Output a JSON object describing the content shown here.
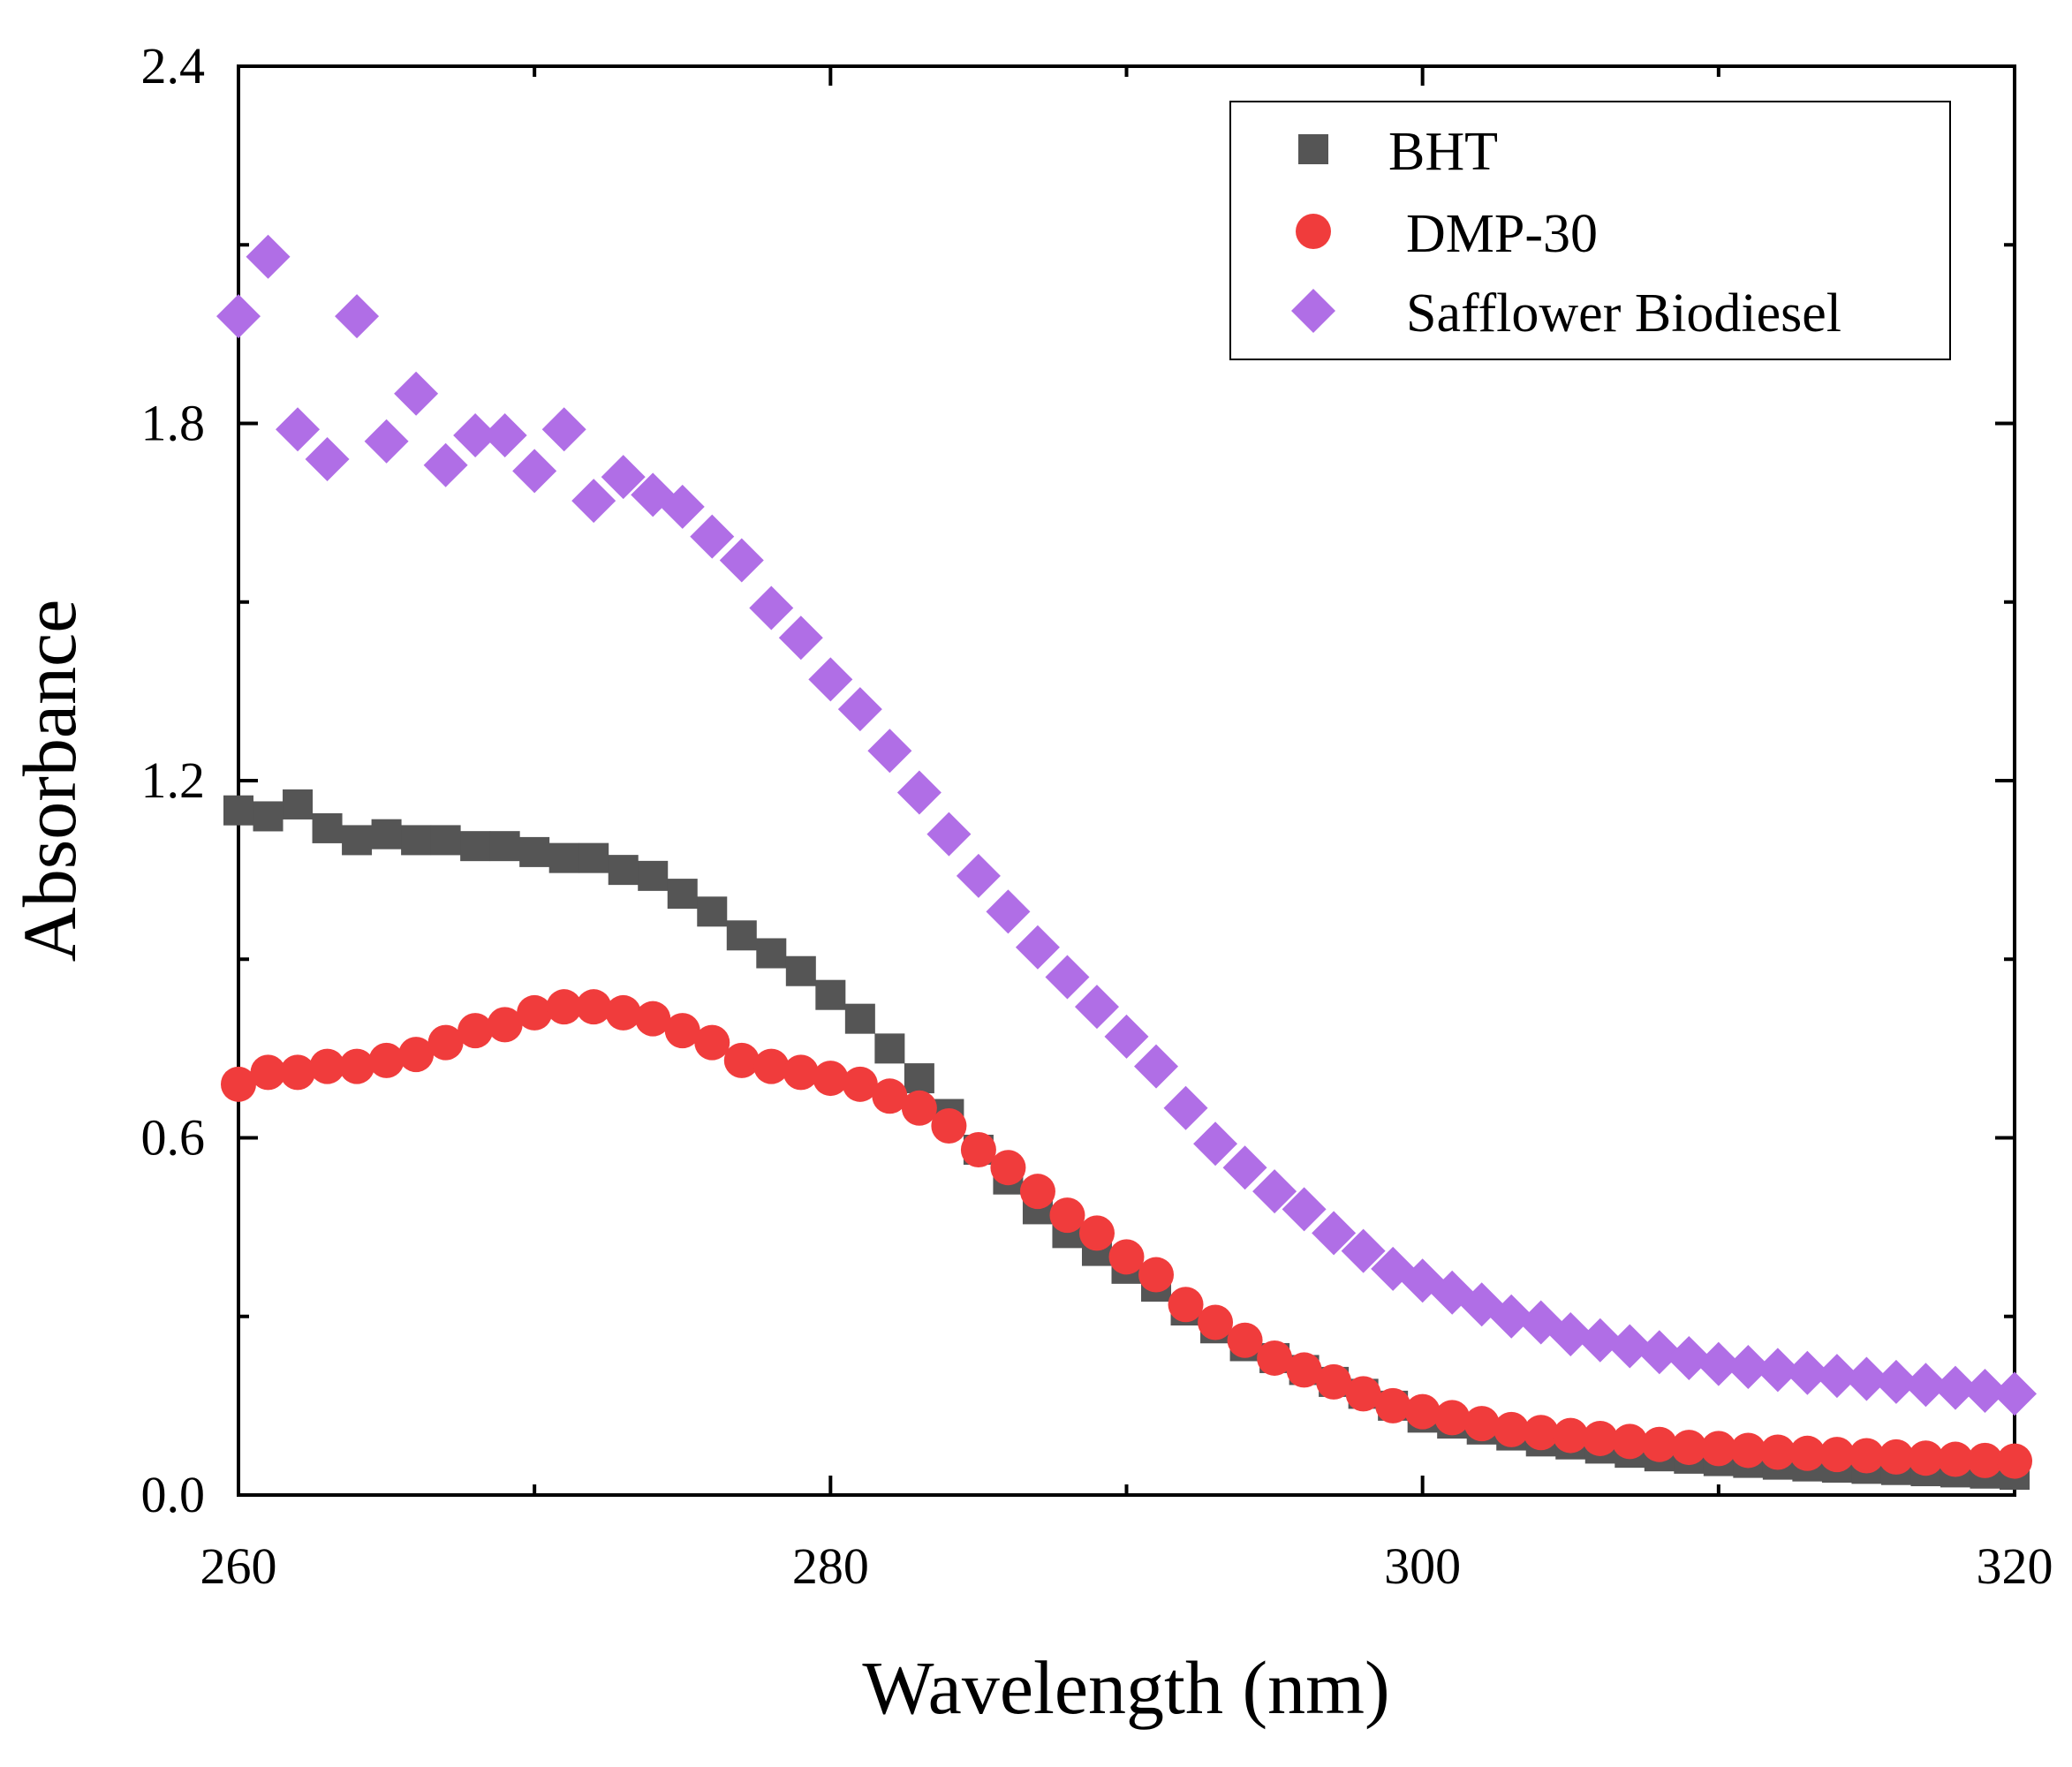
{
  "chart_data": {
    "type": "scatter",
    "xlabel": "Wavelength (nm)",
    "ylabel": "Absorbance",
    "xlim": [
      260,
      320
    ],
    "ylim": [
      0.0,
      2.4
    ],
    "x_ticks": [
      {
        "value": 260,
        "label": "260"
      },
      {
        "value": 280,
        "label": "280"
      },
      {
        "value": 300,
        "label": "300"
      },
      {
        "value": 320,
        "label": "320"
      }
    ],
    "y_ticks": [
      {
        "value": 0.0,
        "label": "0.0"
      },
      {
        "value": 0.6,
        "label": "0.6"
      },
      {
        "value": 1.2,
        "label": "1.2"
      },
      {
        "value": 1.8,
        "label": "1.8"
      },
      {
        "value": 2.4,
        "label": "2.4"
      }
    ],
    "x_minor_ticks": [
      270,
      290,
      310
    ],
    "y_minor_ticks": [
      0.3,
      0.9,
      1.5,
      2.1
    ],
    "grid": false,
    "legend_position": "top-right",
    "series": [
      {
        "name": "BHT",
        "marker": "square",
        "color": "#555555",
        "x": [
          260,
          261,
          262,
          263,
          264,
          265,
          266,
          267,
          268,
          269,
          270,
          271,
          272,
          273,
          274,
          275,
          276,
          277,
          278,
          279,
          280,
          281,
          282,
          283,
          284,
          285,
          286,
          287,
          288,
          289,
          290,
          291,
          292,
          293,
          294,
          295,
          296,
          297,
          298,
          299,
          300,
          301,
          302,
          303,
          304,
          305,
          306,
          307,
          308,
          309,
          310,
          311,
          312,
          313,
          314,
          315,
          316,
          317,
          318,
          319,
          320
        ],
        "values": [
          1.15,
          1.14,
          1.16,
          1.12,
          1.1,
          1.11,
          1.1,
          1.1,
          1.09,
          1.09,
          1.08,
          1.07,
          1.07,
          1.05,
          1.04,
          1.01,
          0.98,
          0.94,
          0.91,
          0.88,
          0.84,
          0.8,
          0.75,
          0.7,
          0.64,
          0.58,
          0.53,
          0.48,
          0.44,
          0.41,
          0.38,
          0.35,
          0.31,
          0.28,
          0.25,
          0.23,
          0.21,
          0.19,
          0.17,
          0.15,
          0.13,
          0.12,
          0.11,
          0.1,
          0.09,
          0.085,
          0.078,
          0.071,
          0.065,
          0.061,
          0.057,
          0.054,
          0.051,
          0.048,
          0.046,
          0.044,
          0.042,
          0.04,
          0.038,
          0.036,
          0.034
        ]
      },
      {
        "name": "DMP-30",
        "marker": "circle",
        "color": "#f03c3c",
        "x": [
          260,
          261,
          262,
          263,
          264,
          265,
          266,
          267,
          268,
          269,
          270,
          271,
          272,
          273,
          274,
          275,
          276,
          277,
          278,
          279,
          280,
          281,
          282,
          283,
          284,
          285,
          286,
          287,
          288,
          289,
          290,
          291,
          292,
          293,
          294,
          295,
          296,
          297,
          298,
          299,
          300,
          301,
          302,
          303,
          304,
          305,
          306,
          307,
          308,
          309,
          310,
          311,
          312,
          313,
          314,
          315,
          316,
          317,
          318,
          319,
          320
        ],
        "values": [
          0.69,
          0.71,
          0.71,
          0.72,
          0.72,
          0.73,
          0.74,
          0.76,
          0.78,
          0.79,
          0.81,
          0.82,
          0.82,
          0.81,
          0.8,
          0.78,
          0.76,
          0.73,
          0.72,
          0.71,
          0.7,
          0.69,
          0.67,
          0.65,
          0.62,
          0.58,
          0.55,
          0.51,
          0.47,
          0.44,
          0.4,
          0.37,
          0.32,
          0.29,
          0.26,
          0.23,
          0.21,
          0.19,
          0.17,
          0.15,
          0.14,
          0.13,
          0.12,
          0.11,
          0.105,
          0.1,
          0.095,
          0.09,
          0.085,
          0.08,
          0.078,
          0.075,
          0.072,
          0.07,
          0.068,
          0.066,
          0.064,
          0.062,
          0.06,
          0.058,
          0.057
        ]
      },
      {
        "name": "Safflower Biodiesel",
        "marker": "diamond",
        "color": "#b06ee6",
        "x": [
          260,
          261,
          262,
          263,
          264,
          265,
          266,
          267,
          268,
          269,
          270,
          271,
          272,
          273,
          274,
          275,
          276,
          277,
          278,
          279,
          280,
          281,
          282,
          283,
          284,
          285,
          286,
          287,
          288,
          289,
          290,
          291,
          292,
          293,
          294,
          295,
          296,
          297,
          298,
          299,
          300,
          301,
          302,
          303,
          304,
          305,
          306,
          307,
          308,
          309,
          310,
          311,
          312,
          313,
          314,
          315,
          316,
          317,
          318,
          319,
          320
        ],
        "values": [
          1.98,
          2.08,
          1.79,
          1.74,
          1.98,
          1.77,
          1.85,
          1.73,
          1.78,
          1.78,
          1.72,
          1.79,
          1.67,
          1.71,
          1.68,
          1.66,
          1.61,
          1.57,
          1.49,
          1.44,
          1.37,
          1.32,
          1.25,
          1.18,
          1.11,
          1.04,
          0.98,
          0.92,
          0.87,
          0.82,
          0.77,
          0.72,
          0.65,
          0.59,
          0.55,
          0.51,
          0.48,
          0.44,
          0.41,
          0.38,
          0.36,
          0.34,
          0.32,
          0.3,
          0.29,
          0.27,
          0.26,
          0.25,
          0.24,
          0.23,
          0.22,
          0.215,
          0.21,
          0.205,
          0.2,
          0.195,
          0.19,
          0.185,
          0.18,
          0.175,
          0.17
        ]
      }
    ]
  }
}
